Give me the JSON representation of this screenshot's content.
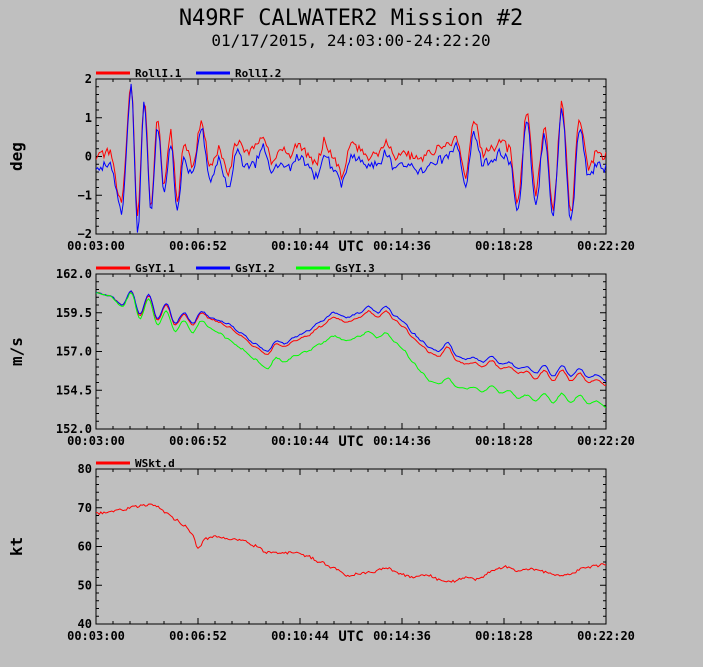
{
  "title": "N49RF CALWATER2 Mission #2",
  "subtitle": "01/17/2015, 24:03:00-24:22:20",
  "colors": {
    "background": "#bfbfbf",
    "red": "#ff0000",
    "blue": "#0000ff",
    "green": "#00ff00"
  },
  "chart_data": [
    {
      "type": "line",
      "ylabel": "deg",
      "xlabel": "UTC",
      "ylim": [
        -2,
        2
      ],
      "yticks": [
        "2",
        "1",
        "0",
        "−1",
        "−2"
      ],
      "yticks_values": [
        2,
        1,
        0,
        -1,
        -2
      ],
      "xlim": [
        "00:03:00",
        "00:22:20"
      ],
      "xticks": [
        "00:03:00",
        "00:06:52",
        "00:10:44",
        "00:14:36",
        "00:18:28",
        "00:22:20"
      ],
      "x": [
        "00:03:00",
        "00:03:30",
        "00:03:58",
        "00:04:20",
        "00:04:35",
        "00:04:50",
        "00:05:05",
        "00:05:20",
        "00:05:35",
        "00:05:50",
        "00:06:05",
        "00:06:20",
        "00:06:40",
        "00:07:00",
        "00:07:20",
        "00:07:40",
        "00:08:00",
        "00:08:20",
        "00:08:40",
        "00:09:00",
        "00:09:20",
        "00:09:40",
        "00:10:00",
        "00:10:20",
        "00:10:40",
        "00:11:00",
        "00:11:20",
        "00:11:40",
        "00:12:00",
        "00:12:20",
        "00:12:40",
        "00:13:00",
        "00:13:20",
        "00:13:40",
        "00:14:00",
        "00:14:20",
        "00:14:40",
        "00:15:00",
        "00:15:20",
        "00:15:40",
        "00:16:00",
        "00:16:20",
        "00:16:40",
        "00:17:00",
        "00:17:20",
        "00:17:40",
        "00:18:00",
        "00:18:20",
        "00:18:40",
        "00:19:00",
        "00:19:20",
        "00:19:40",
        "00:20:00",
        "00:20:20",
        "00:20:40",
        "00:21:00",
        "00:21:20",
        "00:21:40",
        "00:22:00",
        "00:22:20"
      ],
      "series": [
        {
          "name": "RollI.1",
          "color": "#ff0000",
          "values": [
            0.0,
            0.1,
            -1.2,
            1.9,
            -1.5,
            1.5,
            -1.3,
            1.0,
            -0.8,
            0.6,
            -1.1,
            0.3,
            -0.2,
            0.9,
            -0.3,
            0.2,
            -0.5,
            0.4,
            0.1,
            0.2,
            0.6,
            -0.1,
            0.2,
            0.0,
            0.3,
            0.1,
            -0.2,
            0.4,
            0.0,
            -0.5,
            0.3,
            0.2,
            0.0,
            0.1,
            0.4,
            0.0,
            0.1,
            0.0,
            -0.1,
            0.1,
            0.2,
            0.3,
            0.5,
            -0.5,
            0.9,
            0.1,
            0.2,
            0.4,
            0.2,
            -1.2,
            1.2,
            -1.0,
            0.8,
            -1.3,
            1.4,
            -1.5,
            1.0,
            -0.3,
            0.1,
            0.0
          ]
        },
        {
          "name": "RollI.2",
          "color": "#0000ff",
          "values": [
            -0.3,
            -0.2,
            -1.4,
            1.8,
            -1.9,
            1.4,
            -1.5,
            0.8,
            -1.0,
            0.3,
            -1.3,
            -0.1,
            -0.5,
            0.7,
            -0.6,
            -0.1,
            -0.8,
            0.1,
            -0.2,
            -0.2,
            0.3,
            -0.4,
            -0.1,
            -0.3,
            0.0,
            -0.2,
            -0.5,
            0.1,
            -0.3,
            -0.7,
            0.0,
            -0.1,
            -0.3,
            -0.2,
            0.1,
            -0.3,
            -0.2,
            -0.3,
            -0.4,
            -0.2,
            -0.1,
            0.0,
            0.3,
            -0.7,
            0.6,
            -0.2,
            -0.1,
            0.1,
            -0.1,
            -1.4,
            1.0,
            -1.3,
            0.6,
            -1.5,
            1.2,
            -1.7,
            0.7,
            -0.5,
            -0.2,
            -0.3
          ]
        }
      ],
      "legend_position": "top-left"
    },
    {
      "type": "line",
      "ylabel": "m/s",
      "xlabel": "UTC",
      "ylim": [
        152.0,
        162.0
      ],
      "yticks": [
        "162.0",
        "159.5",
        "157.0",
        "154.5",
        "152.0"
      ],
      "yticks_values": [
        162.0,
        159.5,
        157.0,
        154.5,
        152.0
      ],
      "xlim": [
        "00:03:00",
        "00:22:20"
      ],
      "xticks": [
        "00:03:00",
        "00:06:52",
        "00:10:44",
        "00:14:36",
        "00:18:28",
        "00:22:20"
      ],
      "x": [
        "00:03:00",
        "00:03:30",
        "00:04:00",
        "00:04:20",
        "00:04:40",
        "00:05:00",
        "00:05:20",
        "00:05:40",
        "00:06:00",
        "00:06:20",
        "00:06:40",
        "00:07:00",
        "00:07:20",
        "00:07:40",
        "00:08:00",
        "00:08:30",
        "00:09:00",
        "00:09:30",
        "00:09:50",
        "00:10:10",
        "00:10:30",
        "00:11:00",
        "00:11:30",
        "00:12:00",
        "00:12:30",
        "00:13:00",
        "00:13:20",
        "00:13:40",
        "00:14:00",
        "00:14:20",
        "00:14:40",
        "00:15:00",
        "00:15:20",
        "00:15:40",
        "00:16:00",
        "00:16:20",
        "00:16:40",
        "00:17:00",
        "00:17:20",
        "00:17:40",
        "00:18:00",
        "00:18:20",
        "00:18:40",
        "00:19:00",
        "00:19:20",
        "00:19:40",
        "00:20:00",
        "00:20:20",
        "00:20:40",
        "00:21:00",
        "00:21:20",
        "00:21:40",
        "00:22:00",
        "00:22:20"
      ],
      "series": [
        {
          "name": "GsYI.1",
          "color": "#ff0000",
          "values": [
            160.8,
            160.6,
            160.0,
            160.9,
            159.3,
            160.6,
            159.0,
            160.0,
            158.7,
            159.4,
            158.7,
            159.5,
            159.1,
            158.9,
            158.6,
            158.0,
            157.3,
            156.8,
            157.5,
            157.3,
            157.7,
            158.0,
            158.6,
            159.2,
            158.9,
            159.2,
            159.6,
            159.2,
            159.6,
            159.0,
            158.6,
            157.9,
            157.4,
            156.9,
            156.7,
            157.3,
            156.4,
            156.2,
            156.3,
            156.0,
            156.4,
            155.9,
            156.0,
            155.6,
            155.7,
            155.2,
            155.8,
            155.1,
            155.8,
            155.1,
            155.6,
            155.0,
            155.2,
            154.8
          ]
        },
        {
          "name": "GsYI.2",
          "color": "#0000ff",
          "values": [
            160.8,
            160.6,
            160.0,
            160.9,
            159.4,
            160.7,
            159.1,
            160.1,
            158.8,
            159.5,
            158.8,
            159.6,
            159.2,
            159.0,
            158.8,
            158.2,
            157.5,
            157.0,
            157.7,
            157.5,
            157.9,
            158.3,
            158.9,
            159.5,
            159.2,
            159.5,
            159.9,
            159.5,
            159.9,
            159.3,
            158.9,
            158.2,
            157.7,
            157.2,
            157.0,
            157.6,
            156.7,
            156.5,
            156.6,
            156.3,
            156.7,
            156.2,
            156.3,
            155.9,
            156.0,
            155.6,
            156.1,
            155.4,
            156.1,
            155.4,
            155.9,
            155.3,
            155.5,
            155.1
          ]
        },
        {
          "name": "GsYI.3",
          "color": "#00ff00",
          "values": [
            160.8,
            160.6,
            159.9,
            160.8,
            159.1,
            160.4,
            158.7,
            159.6,
            158.3,
            159.0,
            158.2,
            159.0,
            158.5,
            158.2,
            157.8,
            157.2,
            156.5,
            155.9,
            156.6,
            156.3,
            156.7,
            157.0,
            157.5,
            158.0,
            157.7,
            158.0,
            158.3,
            157.9,
            158.2,
            157.6,
            157.1,
            156.3,
            155.7,
            155.1,
            154.9,
            155.3,
            154.7,
            154.6,
            154.7,
            154.4,
            154.8,
            154.3,
            154.5,
            154.0,
            154.2,
            153.8,
            154.3,
            153.7,
            154.3,
            153.7,
            154.2,
            153.6,
            153.8,
            153.4
          ]
        }
      ],
      "legend_position": "top-left"
    },
    {
      "type": "line",
      "ylabel": "kt",
      "xlabel": "UTC",
      "ylim": [
        40,
        80
      ],
      "yticks": [
        "80",
        "70",
        "60",
        "50",
        "40"
      ],
      "yticks_values": [
        80,
        70,
        60,
        50,
        40
      ],
      "xlim": [
        "00:03:00",
        "00:22:20"
      ],
      "xticks": [
        "00:03:00",
        "00:06:52",
        "00:10:44",
        "00:14:36",
        "00:18:28",
        "00:22:20"
      ],
      "x": [
        "00:03:00",
        "00:03:30",
        "00:04:00",
        "00:04:30",
        "00:05:00",
        "00:05:20",
        "00:05:40",
        "00:06:00",
        "00:06:20",
        "00:06:40",
        "00:06:52",
        "00:07:10",
        "00:07:30",
        "00:08:00",
        "00:08:30",
        "00:09:00",
        "00:09:30",
        "00:10:00",
        "00:10:30",
        "00:11:00",
        "00:11:30",
        "00:12:00",
        "00:12:30",
        "00:13:00",
        "00:13:30",
        "00:14:00",
        "00:14:30",
        "00:15:00",
        "00:15:30",
        "00:16:00",
        "00:16:30",
        "00:17:00",
        "00:17:30",
        "00:18:00",
        "00:18:30",
        "00:19:00",
        "00:19:30",
        "00:20:00",
        "00:20:30",
        "00:21:00",
        "00:21:30",
        "00:22:00",
        "00:22:20"
      ],
      "series": [
        {
          "name": "WSkt.d",
          "color": "#ff0000",
          "values": [
            68.5,
            69.0,
            69.5,
            70.3,
            70.8,
            70.2,
            68.8,
            67.0,
            65.5,
            63.0,
            59.5,
            62.0,
            62.5,
            62.0,
            61.8,
            60.2,
            58.5,
            58.3,
            58.5,
            57.5,
            56.0,
            54.5,
            52.5,
            53.0,
            53.5,
            54.5,
            53.0,
            52.0,
            52.8,
            51.5,
            51.0,
            52.0,
            51.5,
            53.5,
            54.8,
            53.8,
            54.2,
            53.5,
            52.5,
            53.0,
            54.5,
            55.0,
            55.5
          ]
        }
      ],
      "legend_position": "top-left"
    }
  ]
}
